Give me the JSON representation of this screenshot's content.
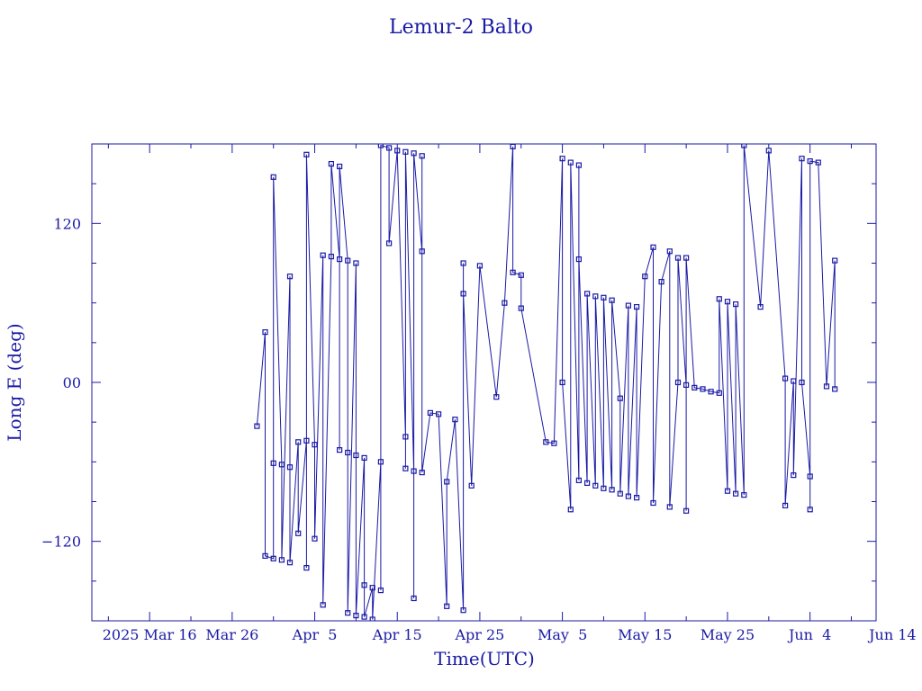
{
  "colors": {
    "line": "#1a1aa6",
    "background": "#ffffff"
  },
  "chart_data": {
    "type": "line",
    "title": "Lemur-2 Balto",
    "xlabel": "Time(UTC)",
    "ylabel": "Long E (deg)",
    "ylim": [
      -180,
      180
    ],
    "xlim": [
      "2025-03-09",
      "2025-06-12"
    ],
    "x_ticks": [
      {
        "date": "2025-03-16",
        "label": "2025 Mar 16"
      },
      {
        "date": "2025-03-26",
        "label": "Mar 26"
      },
      {
        "date": "2025-04-05",
        "label": "Apr  5"
      },
      {
        "date": "2025-04-15",
        "label": "Apr 15"
      },
      {
        "date": "2025-04-25",
        "label": "Apr 25"
      },
      {
        "date": "2025-05-05",
        "label": "May  5"
      },
      {
        "date": "2025-05-15",
        "label": "May 15"
      },
      {
        "date": "2025-05-25",
        "label": "May 25"
      },
      {
        "date": "2025-06-04",
        "label": "Jun  4"
      },
      {
        "date": "2025-06-14",
        "label": "Jun 14"
      }
    ],
    "y_ticks": [
      {
        "value": 120,
        "label": "120"
      },
      {
        "value": 0,
        "label": "00"
      },
      {
        "value": -120,
        "label": "−120"
      }
    ],
    "grid": false,
    "series": [
      {
        "marker": "square",
        "points": [
          [
            "2025-03-29",
            -33
          ],
          [
            "2025-03-30",
            38
          ],
          [
            "2025-03-30",
            -131
          ],
          [
            "2025-03-31",
            -133
          ],
          [
            "2025-03-31",
            -61
          ],
          [
            "2025-03-31",
            155
          ],
          [
            "2025-04-01",
            -62
          ],
          [
            "2025-04-01",
            -134
          ],
          [
            "2025-04-02",
            80
          ],
          [
            "2025-04-02",
            -64
          ],
          [
            "2025-04-02",
            -136
          ],
          [
            "2025-04-03",
            -45
          ],
          [
            "2025-04-03",
            -114
          ],
          [
            "2025-04-04",
            -44
          ],
          [
            "2025-04-04",
            -140
          ],
          [
            "2025-04-04",
            172
          ],
          [
            "2025-04-05",
            -47
          ],
          [
            "2025-04-05",
            -118
          ],
          [
            "2025-04-06",
            96
          ],
          [
            "2025-04-06",
            -168
          ],
          [
            "2025-04-07",
            95
          ],
          [
            "2025-04-07",
            165
          ],
          [
            "2025-04-08",
            93
          ],
          [
            "2025-04-08",
            -51
          ],
          [
            "2025-04-08",
            163
          ],
          [
            "2025-04-09",
            92
          ],
          [
            "2025-04-09",
            -53
          ],
          [
            "2025-04-09",
            -174
          ],
          [
            "2025-04-10",
            90
          ],
          [
            "2025-04-10",
            -55
          ],
          [
            "2025-04-10",
            -176
          ],
          [
            "2025-04-11",
            -57
          ],
          [
            "2025-04-11",
            -153
          ],
          [
            "2025-04-11",
            -177
          ],
          [
            "2025-04-12",
            -155
          ],
          [
            "2025-04-12",
            -179
          ],
          [
            "2025-04-13",
            -60
          ],
          [
            "2025-04-13",
            -157
          ],
          [
            "2025-04-13",
            179
          ],
          [
            "2025-04-14",
            177
          ],
          [
            "2025-04-14",
            105
          ],
          [
            "2025-04-15",
            175
          ],
          [
            "2025-04-16",
            -41
          ],
          [
            "2025-04-16",
            -65
          ],
          [
            "2025-04-16",
            174
          ],
          [
            "2025-04-17",
            -67
          ],
          [
            "2025-04-17",
            -163
          ],
          [
            "2025-04-17",
            173
          ],
          [
            "2025-04-18",
            99
          ],
          [
            "2025-04-18",
            171
          ],
          [
            "2025-04-18",
            -68
          ],
          [
            "2025-04-19",
            -23
          ],
          [
            "2025-04-20",
            -24
          ],
          [
            "2025-04-21",
            -169
          ],
          [
            "2025-04-21",
            -75
          ],
          [
            "2025-04-22",
            -28
          ],
          [
            "2025-04-23",
            -172
          ],
          [
            "2025-04-23",
            90
          ],
          [
            "2025-04-23",
            67
          ],
          [
            "2025-04-24",
            -78
          ],
          [
            "2025-04-25",
            88
          ],
          [
            "2025-04-27",
            -11
          ],
          [
            "2025-04-28",
            60
          ],
          [
            "2025-04-29",
            178
          ],
          [
            "2025-04-29",
            83
          ],
          [
            "2025-04-30",
            81
          ],
          [
            "2025-04-30",
            56
          ],
          [
            "2025-05-03",
            -45
          ],
          [
            "2025-05-04",
            -46
          ],
          [
            "2025-05-05",
            169
          ],
          [
            "2025-05-05",
            0
          ],
          [
            "2025-05-06",
            -96
          ],
          [
            "2025-05-06",
            166
          ],
          [
            "2025-05-07",
            -74
          ],
          [
            "2025-05-07",
            164
          ],
          [
            "2025-05-07",
            93
          ],
          [
            "2025-05-08",
            -76
          ],
          [
            "2025-05-08",
            67
          ],
          [
            "2025-05-09",
            -78
          ],
          [
            "2025-05-09",
            65
          ],
          [
            "2025-05-10",
            -80
          ],
          [
            "2025-05-10",
            64
          ],
          [
            "2025-05-11",
            -81
          ],
          [
            "2025-05-11",
            62
          ],
          [
            "2025-05-12",
            -12
          ],
          [
            "2025-05-12",
            -84
          ],
          [
            "2025-05-13",
            58
          ],
          [
            "2025-05-13",
            -86
          ],
          [
            "2025-05-14",
            57
          ],
          [
            "2025-05-14",
            -87
          ],
          [
            "2025-05-15",
            80
          ],
          [
            "2025-05-16",
            102
          ],
          [
            "2025-05-16",
            -91
          ],
          [
            "2025-05-17",
            76
          ],
          [
            "2025-05-18",
            99
          ],
          [
            "2025-05-18",
            -94
          ],
          [
            "2025-05-19",
            0
          ],
          [
            "2025-05-19",
            94
          ],
          [
            "2025-05-20",
            -2
          ],
          [
            "2025-05-20",
            -97
          ],
          [
            "2025-05-20",
            94
          ],
          [
            "2025-05-21",
            -4
          ],
          [
            "2025-05-22",
            -5
          ],
          [
            "2025-05-23",
            -7
          ],
          [
            "2025-05-24",
            -8
          ],
          [
            "2025-05-24",
            63
          ],
          [
            "2025-05-25",
            -82
          ],
          [
            "2025-05-25",
            61
          ],
          [
            "2025-05-26",
            -84
          ],
          [
            "2025-05-26",
            59
          ],
          [
            "2025-05-27",
            -85
          ],
          [
            "2025-05-27",
            179
          ],
          [
            "2025-05-29",
            57
          ],
          [
            "2025-05-30",
            175
          ],
          [
            "2025-06-01",
            3
          ],
          [
            "2025-06-01",
            -93
          ],
          [
            "2025-06-02",
            1
          ],
          [
            "2025-06-02",
            -70
          ],
          [
            "2025-06-03",
            169
          ],
          [
            "2025-06-03",
            0
          ],
          [
            "2025-06-04",
            -71
          ],
          [
            "2025-06-04",
            -96
          ],
          [
            "2025-06-04",
            167
          ],
          [
            "2025-06-05",
            166
          ],
          [
            "2025-06-06",
            -3
          ],
          [
            "2025-06-07",
            92
          ],
          [
            "2025-06-07",
            -5
          ]
        ]
      }
    ]
  }
}
